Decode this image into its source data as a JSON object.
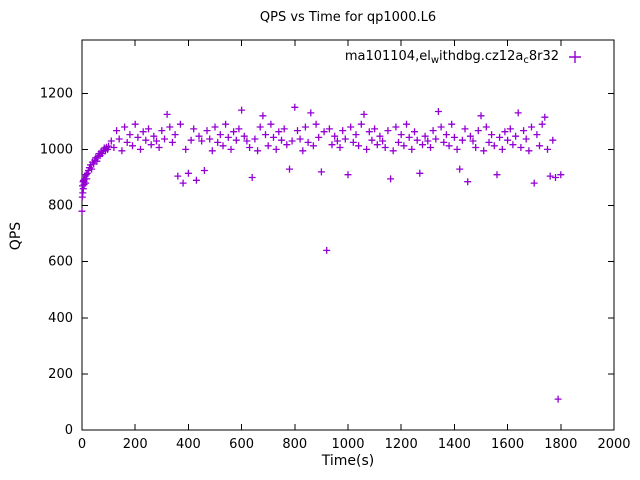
{
  "chart_data": {
    "type": "scatter",
    "title": "QPS vs Time for qp1000.L6",
    "xlabel": "Time(s)",
    "ylabel": "QPS",
    "xlim": [
      0,
      2000
    ],
    "ylim": [
      0,
      1390
    ],
    "xticks": [
      0,
      200,
      400,
      600,
      800,
      1000,
      1200,
      1400,
      1600,
      1800,
      2000
    ],
    "yticks": [
      0,
      200,
      400,
      600,
      800,
      1000,
      1200
    ],
    "grid": false,
    "legend": {
      "position": "top-right-inside",
      "marker": "plus",
      "part1": "ma101104,el",
      "sub1": "w",
      "part2": "ithdbg.cz12a",
      "sub2": "c",
      "part3": "8r32"
    },
    "marker": {
      "shape": "plus",
      "color": "#9400d3",
      "size": 7
    },
    "axis_color": "#000000",
    "series_name": "ma101104,el_withdbg.cz12a_c8r32",
    "points": [
      [
        0,
        780
      ],
      [
        1,
        830
      ],
      [
        2,
        870
      ],
      [
        3,
        845
      ],
      [
        4,
        885
      ],
      [
        5,
        860
      ],
      [
        6,
        890
      ],
      [
        8,
        875
      ],
      [
        10,
        895
      ],
      [
        12,
        905
      ],
      [
        14,
        880
      ],
      [
        16,
        910
      ],
      [
        18,
        895
      ],
      [
        20,
        915
      ],
      [
        24,
        925
      ],
      [
        28,
        935
      ],
      [
        32,
        945
      ],
      [
        36,
        930
      ],
      [
        40,
        955
      ],
      [
        44,
        948
      ],
      [
        48,
        962
      ],
      [
        52,
        970
      ],
      [
        56,
        958
      ],
      [
        60,
        975
      ],
      [
        64,
        985
      ],
      [
        68,
        978
      ],
      [
        72,
        992
      ],
      [
        76,
        985
      ],
      [
        80,
        998
      ],
      [
        84,
        1005
      ],
      [
        88,
        995
      ],
      [
        92,
        1008
      ],
      [
        96,
        1000
      ],
      [
        100,
        1012
      ],
      [
        110,
        1030
      ],
      [
        120,
        1007
      ],
      [
        130,
        1067
      ],
      [
        140,
        1037
      ],
      [
        150,
        995
      ],
      [
        160,
        1080
      ],
      [
        170,
        1025
      ],
      [
        180,
        1053
      ],
      [
        190,
        1013
      ],
      [
        200,
        1090
      ],
      [
        210,
        1043
      ],
      [
        220,
        1000
      ],
      [
        230,
        1063
      ],
      [
        240,
        1033
      ],
      [
        250,
        1073
      ],
      [
        260,
        1017
      ],
      [
        270,
        1047
      ],
      [
        280,
        1030
      ],
      [
        290,
        1007
      ],
      [
        300,
        1067
      ],
      [
        310,
        1037
      ],
      [
        320,
        1125
      ],
      [
        330,
        1080
      ],
      [
        340,
        1025
      ],
      [
        350,
        1053
      ],
      [
        360,
        905
      ],
      [
        370,
        1090
      ],
      [
        380,
        880
      ],
      [
        390,
        1000
      ],
      [
        400,
        915
      ],
      [
        410,
        1033
      ],
      [
        420,
        1073
      ],
      [
        430,
        890
      ],
      [
        440,
        1047
      ],
      [
        450,
        1030
      ],
      [
        460,
        925
      ],
      [
        470,
        1067
      ],
      [
        480,
        1037
      ],
      [
        490,
        995
      ],
      [
        500,
        1080
      ],
      [
        510,
        1025
      ],
      [
        520,
        1053
      ],
      [
        530,
        1013
      ],
      [
        540,
        1090
      ],
      [
        550,
        1043
      ],
      [
        560,
        1000
      ],
      [
        570,
        1063
      ],
      [
        580,
        1033
      ],
      [
        590,
        1073
      ],
      [
        600,
        1140
      ],
      [
        610,
        1047
      ],
      [
        620,
        1030
      ],
      [
        630,
        1007
      ],
      [
        640,
        900
      ],
      [
        650,
        1037
      ],
      [
        660,
        995
      ],
      [
        670,
        1080
      ],
      [
        680,
        1120
      ],
      [
        690,
        1053
      ],
      [
        700,
        1013
      ],
      [
        710,
        1090
      ],
      [
        720,
        1043
      ],
      [
        730,
        1000
      ],
      [
        740,
        1063
      ],
      [
        750,
        1033
      ],
      [
        760,
        1073
      ],
      [
        770,
        1017
      ],
      [
        780,
        930
      ],
      [
        790,
        1030
      ],
      [
        800,
        1150
      ],
      [
        810,
        1067
      ],
      [
        820,
        1037
      ],
      [
        830,
        995
      ],
      [
        840,
        1080
      ],
      [
        850,
        1025
      ],
      [
        860,
        1130
      ],
      [
        870,
        1013
      ],
      [
        880,
        1090
      ],
      [
        890,
        1043
      ],
      [
        900,
        920
      ],
      [
        910,
        1063
      ],
      [
        920,
        640
      ],
      [
        930,
        1073
      ],
      [
        940,
        1017
      ],
      [
        950,
        1047
      ],
      [
        960,
        1030
      ],
      [
        970,
        1007
      ],
      [
        980,
        1067
      ],
      [
        990,
        1037
      ],
      [
        1000,
        910
      ],
      [
        1010,
        1080
      ],
      [
        1020,
        1025
      ],
      [
        1030,
        1053
      ],
      [
        1040,
        1013
      ],
      [
        1050,
        1090
      ],
      [
        1060,
        1125
      ],
      [
        1070,
        1000
      ],
      [
        1080,
        1063
      ],
      [
        1090,
        1033
      ],
      [
        1100,
        1073
      ],
      [
        1110,
        1017
      ],
      [
        1120,
        1047
      ],
      [
        1130,
        1030
      ],
      [
        1140,
        1007
      ],
      [
        1150,
        1067
      ],
      [
        1160,
        895
      ],
      [
        1170,
        995
      ],
      [
        1180,
        1080
      ],
      [
        1190,
        1025
      ],
      [
        1200,
        1053
      ],
      [
        1210,
        1013
      ],
      [
        1220,
        1090
      ],
      [
        1230,
        1043
      ],
      [
        1240,
        1000
      ],
      [
        1250,
        1063
      ],
      [
        1260,
        1033
      ],
      [
        1270,
        915
      ],
      [
        1280,
        1017
      ],
      [
        1290,
        1047
      ],
      [
        1300,
        1030
      ],
      [
        1310,
        1007
      ],
      [
        1320,
        1067
      ],
      [
        1330,
        1037
      ],
      [
        1340,
        1135
      ],
      [
        1350,
        1080
      ],
      [
        1360,
        1025
      ],
      [
        1370,
        1053
      ],
      [
        1380,
        1013
      ],
      [
        1390,
        1090
      ],
      [
        1400,
        1043
      ],
      [
        1410,
        1000
      ],
      [
        1420,
        930
      ],
      [
        1430,
        1033
      ],
      [
        1440,
        1073
      ],
      [
        1450,
        885
      ],
      [
        1460,
        1047
      ],
      [
        1470,
        1030
      ],
      [
        1480,
        1007
      ],
      [
        1490,
        1067
      ],
      [
        1500,
        1120
      ],
      [
        1510,
        995
      ],
      [
        1520,
        1080
      ],
      [
        1530,
        1025
      ],
      [
        1540,
        1053
      ],
      [
        1550,
        1013
      ],
      [
        1560,
        910
      ],
      [
        1570,
        1043
      ],
      [
        1580,
        1000
      ],
      [
        1590,
        1063
      ],
      [
        1600,
        1033
      ],
      [
        1610,
        1073
      ],
      [
        1620,
        1017
      ],
      [
        1630,
        1047
      ],
      [
        1640,
        1130
      ],
      [
        1650,
        1007
      ],
      [
        1660,
        1067
      ],
      [
        1670,
        1037
      ],
      [
        1680,
        995
      ],
      [
        1690,
        1080
      ],
      [
        1700,
        880
      ],
      [
        1710,
        1053
      ],
      [
        1720,
        1013
      ],
      [
        1730,
        1090
      ],
      [
        1740,
        1115
      ],
      [
        1750,
        1000
      ],
      [
        1760,
        905
      ],
      [
        1770,
        1033
      ],
      [
        1780,
        900
      ],
      [
        1790,
        110
      ],
      [
        1800,
        910
      ]
    ]
  }
}
